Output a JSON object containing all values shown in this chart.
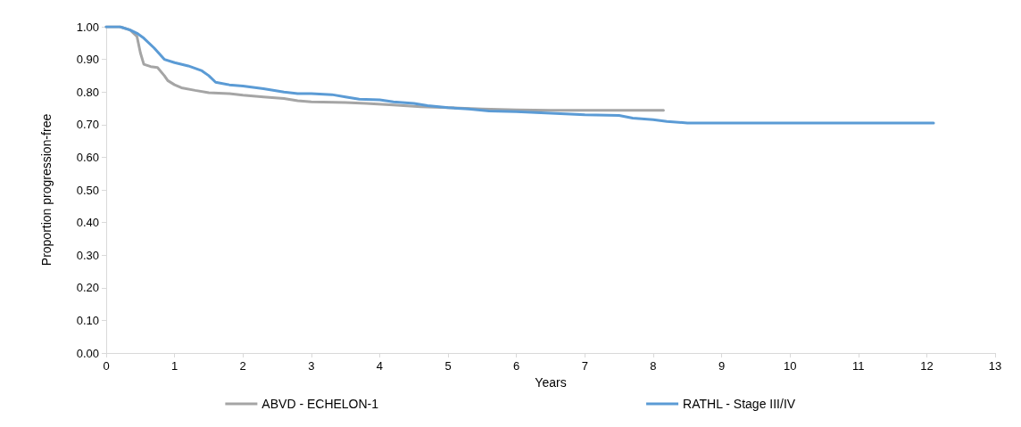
{
  "chart_data": {
    "type": "line",
    "xlabel": "Years",
    "ylabel": "Proportion progression-free",
    "xlim": [
      0,
      13
    ],
    "xticks": [
      0,
      1,
      2,
      3,
      4,
      5,
      6,
      7,
      8,
      9,
      10,
      11,
      12,
      13
    ],
    "ylim": [
      0,
      1
    ],
    "yticks": [
      {
        "value": 0,
        "label": "0.00"
      },
      {
        "value": 0.1,
        "label": "0.10"
      },
      {
        "value": 0.2,
        "label": "0.20"
      },
      {
        "value": 0.3,
        "label": "0.30"
      },
      {
        "value": 0.4,
        "label": "0.40"
      },
      {
        "value": 0.5,
        "label": "0.50"
      },
      {
        "value": 0.6,
        "label": "0.60"
      },
      {
        "value": 0.7,
        "label": "0.70"
      },
      {
        "value": 0.8,
        "label": "0.80"
      },
      {
        "value": 0.9,
        "label": "0.90"
      },
      {
        "value": 1,
        "label": "1.00"
      }
    ],
    "grid": false,
    "legend": "bottom",
    "marker": "none",
    "line_style": "solid",
    "series": [
      {
        "name": "ABVD - ECHELON-1",
        "color": "#a5a5a5",
        "x": [
          0,
          0.2,
          0.35,
          0.45,
          0.5,
          0.55,
          0.65,
          0.75,
          0.85,
          0.9,
          1.0,
          1.1,
          1.3,
          1.5,
          1.8,
          2.0,
          2.3,
          2.6,
          2.8,
          3.0,
          3.5,
          3.8,
          4.2,
          4.6,
          5.0,
          5.5,
          6.0,
          6.5,
          8.15
        ],
        "values": [
          1.0,
          1.0,
          0.99,
          0.97,
          0.92,
          0.885,
          0.878,
          0.875,
          0.85,
          0.835,
          0.822,
          0.813,
          0.805,
          0.798,
          0.795,
          0.79,
          0.785,
          0.78,
          0.773,
          0.77,
          0.768,
          0.765,
          0.76,
          0.755,
          0.752,
          0.748,
          0.745,
          0.744,
          0.744
        ]
      },
      {
        "name": "RATHL - Stage III/IV",
        "color": "#5b9bd5",
        "x": [
          0,
          0.2,
          0.35,
          0.45,
          0.55,
          0.7,
          0.85,
          1.0,
          1.2,
          1.4,
          1.5,
          1.6,
          1.8,
          2.0,
          2.3,
          2.6,
          2.8,
          3.0,
          3.3,
          3.5,
          3.7,
          4.0,
          4.2,
          4.5,
          4.7,
          5.0,
          5.3,
          5.6,
          6.0,
          6.5,
          7.0,
          7.5,
          7.7,
          8.0,
          8.2,
          8.5,
          9.0,
          12.1
        ],
        "values": [
          1.0,
          1.0,
          0.99,
          0.98,
          0.965,
          0.935,
          0.9,
          0.89,
          0.88,
          0.865,
          0.85,
          0.83,
          0.822,
          0.818,
          0.81,
          0.8,
          0.795,
          0.795,
          0.792,
          0.785,
          0.778,
          0.776,
          0.77,
          0.765,
          0.758,
          0.752,
          0.748,
          0.742,
          0.74,
          0.735,
          0.73,
          0.728,
          0.72,
          0.715,
          0.71,
          0.705,
          0.705,
          0.705
        ]
      }
    ]
  }
}
